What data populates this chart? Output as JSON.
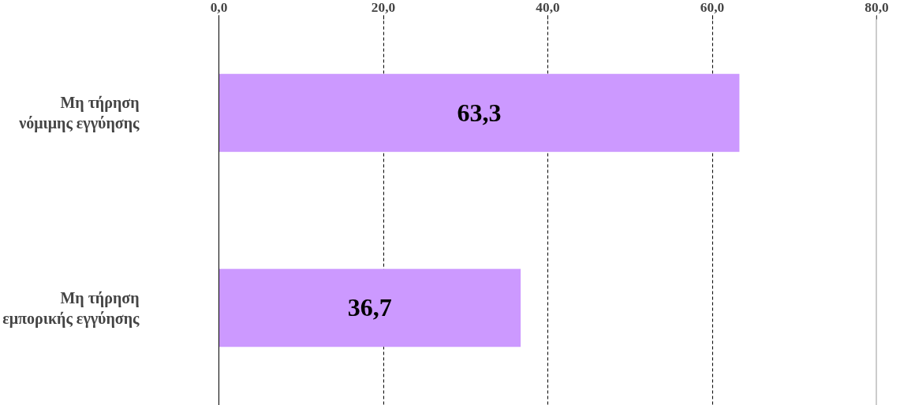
{
  "chart_data": {
    "type": "bar",
    "orientation": "horizontal",
    "categories": [
      "Μη τήρηση νόμιμης εγγύησης",
      "Μη τήρηση εμπορικής εγγύησης"
    ],
    "values": [
      63.3,
      36.7
    ],
    "value_labels": [
      "63,3",
      "36,7"
    ],
    "color": "#cc99ff",
    "xlim": [
      0,
      80
    ],
    "xticks": [
      {
        "value": 0,
        "label": "0,0"
      },
      {
        "value": 20,
        "label": "20,0"
      },
      {
        "value": 40,
        "label": "40,0"
      },
      {
        "value": 60,
        "label": "60,0"
      },
      {
        "value": 80,
        "label": "80,0"
      }
    ],
    "grid": "x",
    "line_style": "dashed"
  }
}
